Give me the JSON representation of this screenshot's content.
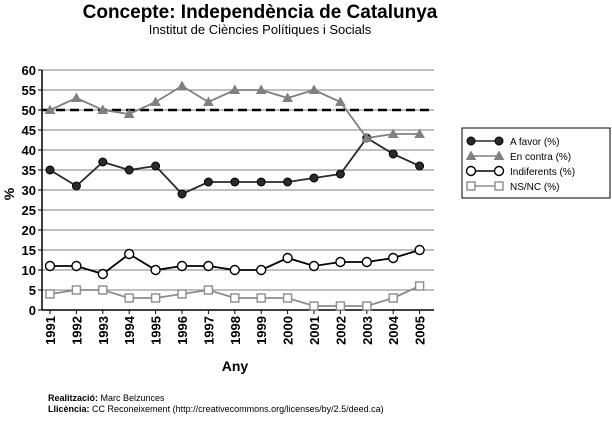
{
  "chart_data": {
    "type": "line",
    "title": "Concepte: Independència de Catalunya",
    "subtitle": "Institut de Ciències Polítiques i Socials",
    "xlabel": "Any",
    "ylabel": "%",
    "ylim": [
      0,
      60
    ],
    "yticks": [
      "0",
      "5",
      "10",
      "15",
      "20",
      "25",
      "30",
      "35",
      "40",
      "45",
      "50",
      "55",
      "60"
    ],
    "grid": true,
    "reference_line": 50,
    "legend_position": "right",
    "categories": [
      "1991",
      "1992",
      "1993",
      "1994",
      "1995",
      "1996",
      "1997",
      "1998",
      "1999",
      "2000",
      "2001",
      "2002",
      "2003",
      "2004",
      "2005"
    ],
    "series": [
      {
        "name": "A favor (%)",
        "marker": "filled-circle",
        "color": "#2a2a2a",
        "values": [
          35,
          31,
          37,
          35,
          36,
          29,
          32,
          32,
          32,
          32,
          33,
          34,
          43,
          39,
          36
        ]
      },
      {
        "name": "En contra (%)",
        "marker": "filled-triangle",
        "color": "#808080",
        "values": [
          50,
          53,
          50,
          49,
          52,
          56,
          52,
          55,
          55,
          53,
          55,
          52,
          43,
          44,
          44
        ]
      },
      {
        "name": "Indiferents (%)",
        "marker": "open-circle",
        "color": "#000000",
        "values": [
          11,
          11,
          9,
          14,
          10,
          11,
          11,
          10,
          10,
          13,
          11,
          12,
          12,
          13,
          15
        ]
      },
      {
        "name": "NS/NC (%)",
        "marker": "open-square",
        "color": "#8c8c8c",
        "values": [
          4,
          5,
          5,
          3,
          3,
          4,
          5,
          3,
          3,
          3,
          1,
          1,
          1,
          3,
          6
        ]
      }
    ]
  },
  "footer": {
    "realitzacio_label": "Realització:",
    "realitzacio_value": "Marc Belzunces",
    "llicencia_label": "Llicència:",
    "llicencia_value": "CC Reconeixement (http://creativecommons.org/licenses/by/2.5/deed.ca)"
  }
}
